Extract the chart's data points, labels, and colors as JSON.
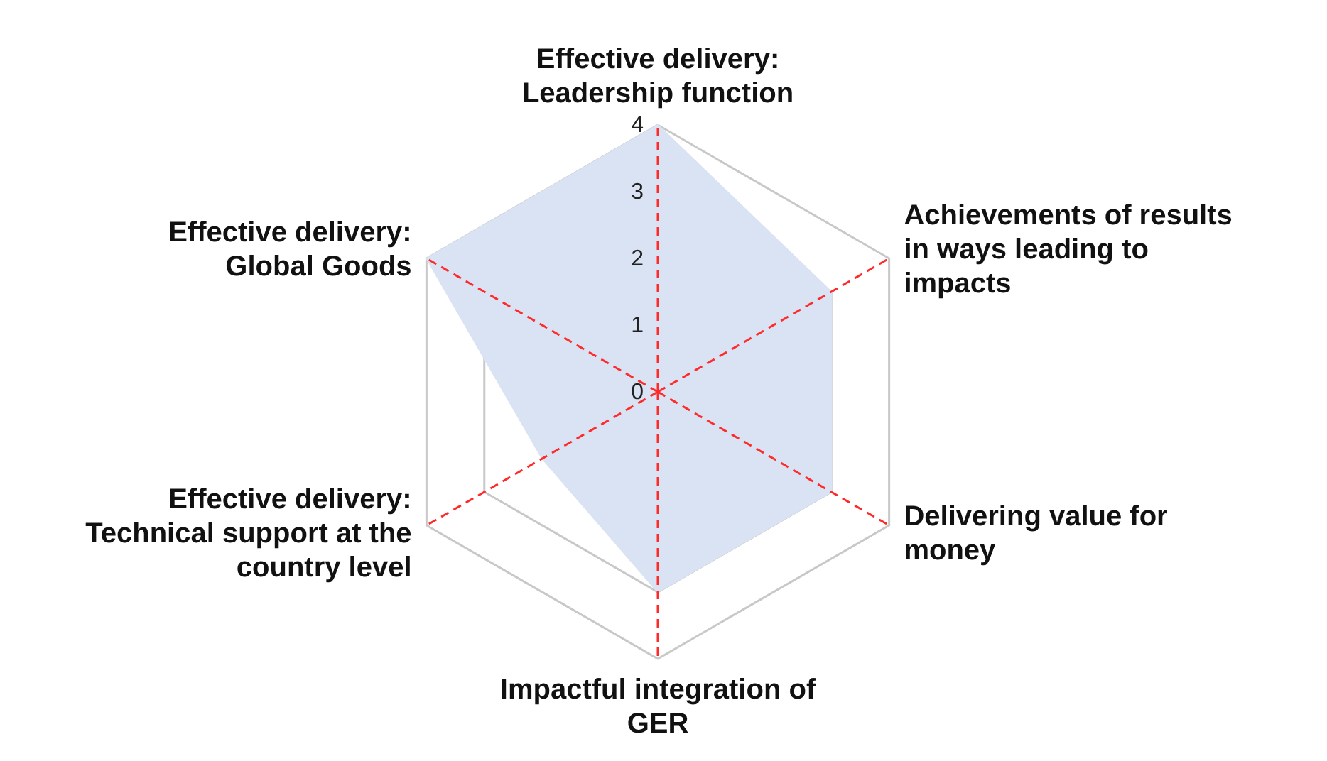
{
  "chart_data": {
    "type": "radar",
    "categories": [
      "Effective delivery: Leadership function",
      "Achievements of results in ways leading to impacts",
      "Delivering value for money",
      "Impactful integration of GER",
      "Effective delivery: Technical support at the country level",
      "Effective delivery: Global Goods"
    ],
    "series": [
      {
        "color": "#dae3f3",
        "values": [
          4,
          3,
          3,
          3,
          2,
          4
        ]
      }
    ],
    "ylim": [
      0,
      4
    ],
    "yticks": [
      0,
      1,
      2,
      3,
      4
    ],
    "grid": true
  }
}
